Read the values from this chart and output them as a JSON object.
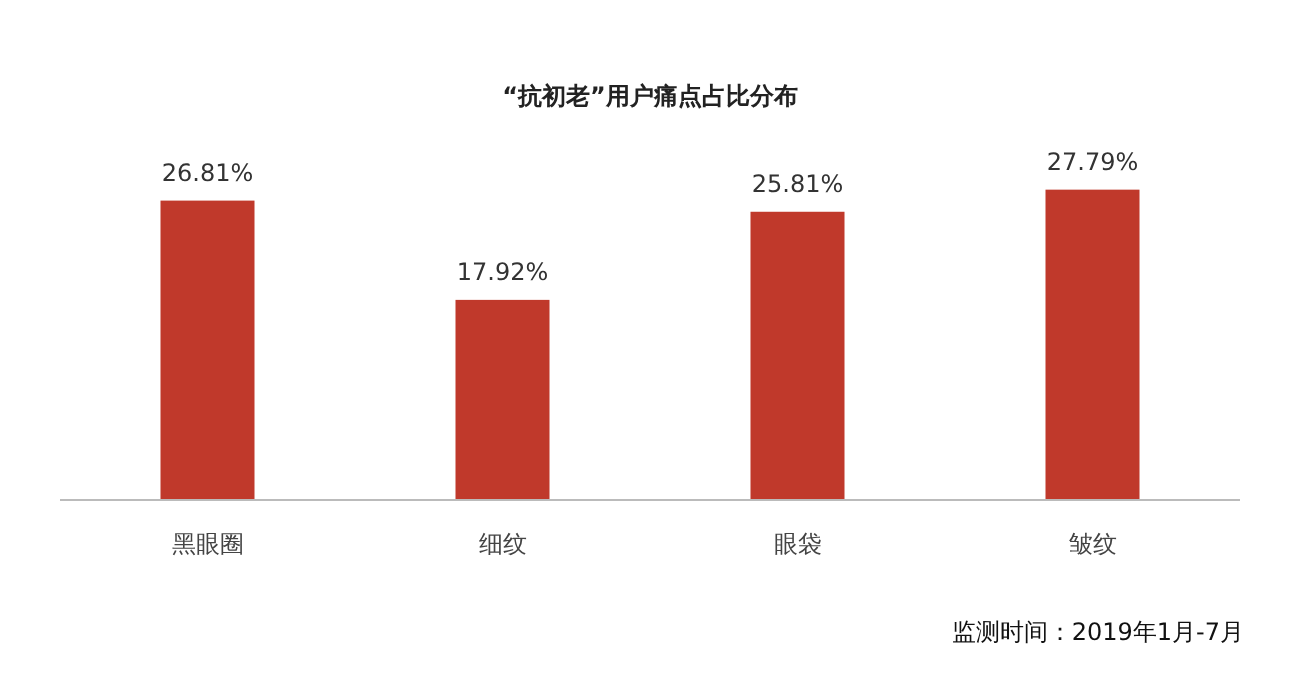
{
  "chart_data": {
    "type": "bar",
    "title": "“抗初老”用户痛点占比分布",
    "categories": [
      "黑眼圈",
      "细纹",
      "眼袋",
      "皱纹"
    ],
    "values": [
      26.81,
      17.92,
      25.81,
      27.79
    ],
    "value_labels": [
      "26.81%",
      "17.92%",
      "25.81%",
      "27.79%"
    ],
    "color": "#c0392b",
    "annotations": [
      "监测时间：2019年1月-7月"
    ]
  }
}
